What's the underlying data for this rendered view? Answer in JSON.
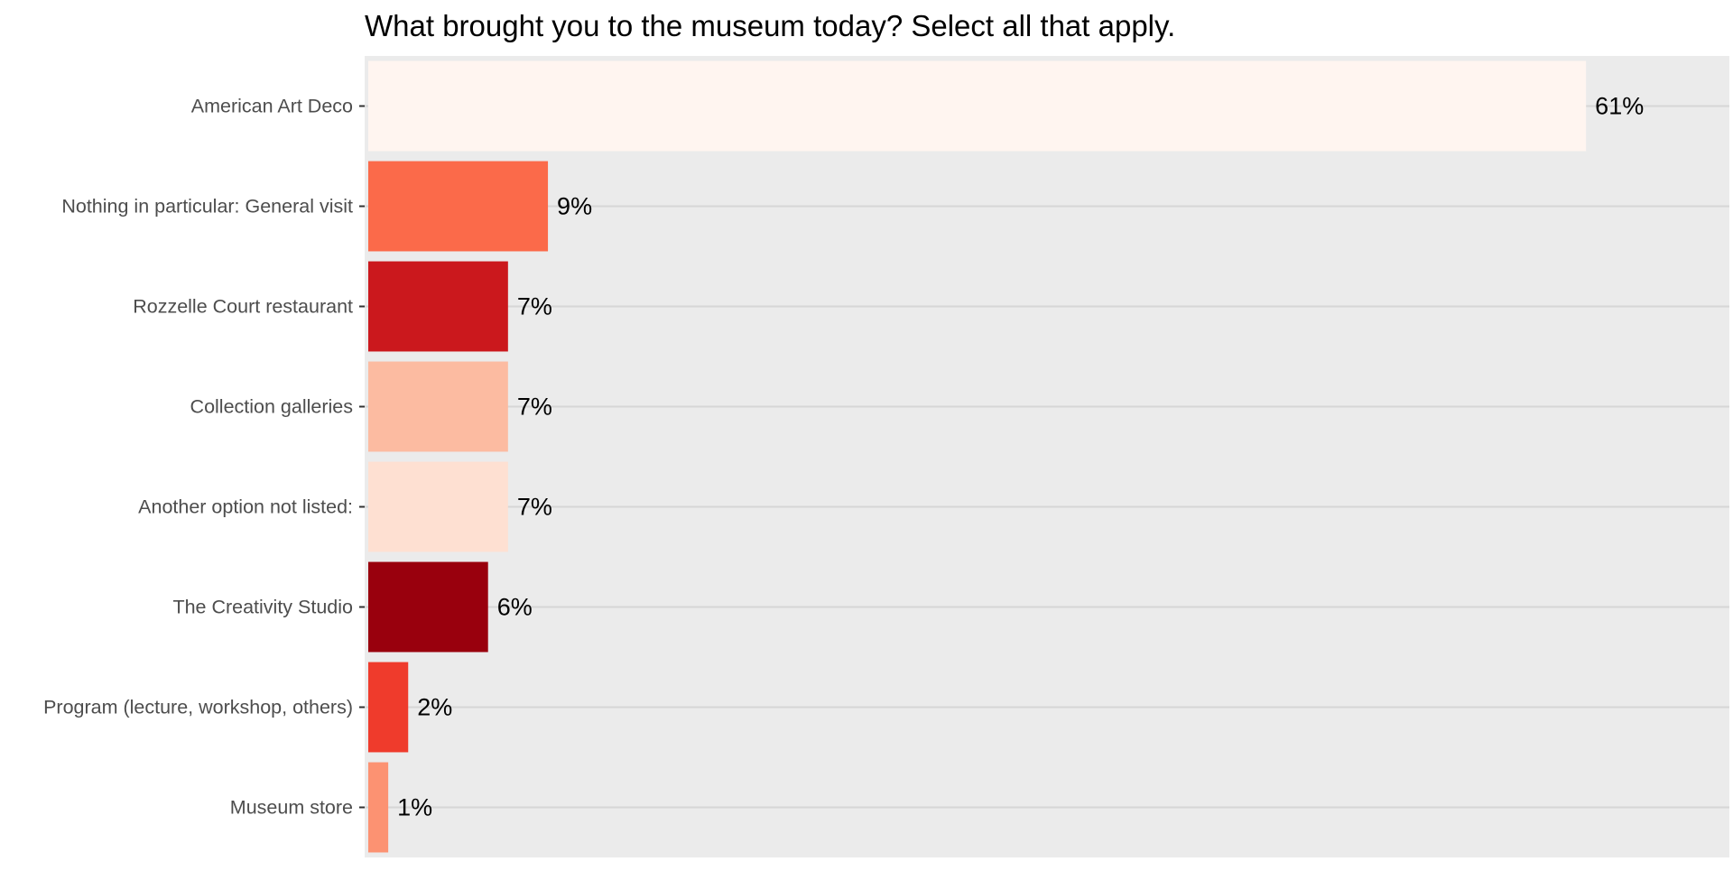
{
  "chart_data": {
    "type": "bar",
    "orientation": "horizontal",
    "title": "What brought you to the museum today? Select all that apply.",
    "xlabel": "",
    "ylabel": "",
    "xlim": [
      0,
      68
    ],
    "grid": true,
    "legend": "none",
    "panel_background": "#ebebeb",
    "gridline_color": "#d6d6d6",
    "categories": [
      "American Art Deco",
      "Nothing in particular: General visit",
      "Rozzelle Court restaurant",
      "Collection galleries",
      "Another option not listed:",
      "The Creativity Studio",
      "Program (lecture, workshop, others)",
      "Museum store"
    ],
    "values": [
      61,
      9,
      7,
      7,
      7,
      6,
      2,
      1
    ],
    "value_labels": [
      "61%",
      "9%",
      "7%",
      "7%",
      "7%",
      "6%",
      "2%",
      "1%"
    ],
    "colors": [
      "#fff5f0",
      "#fb6a4a",
      "#cb181d",
      "#fcbba1",
      "#fee0d2",
      "#99000d",
      "#ef3b2c",
      "#fc9272"
    ]
  }
}
